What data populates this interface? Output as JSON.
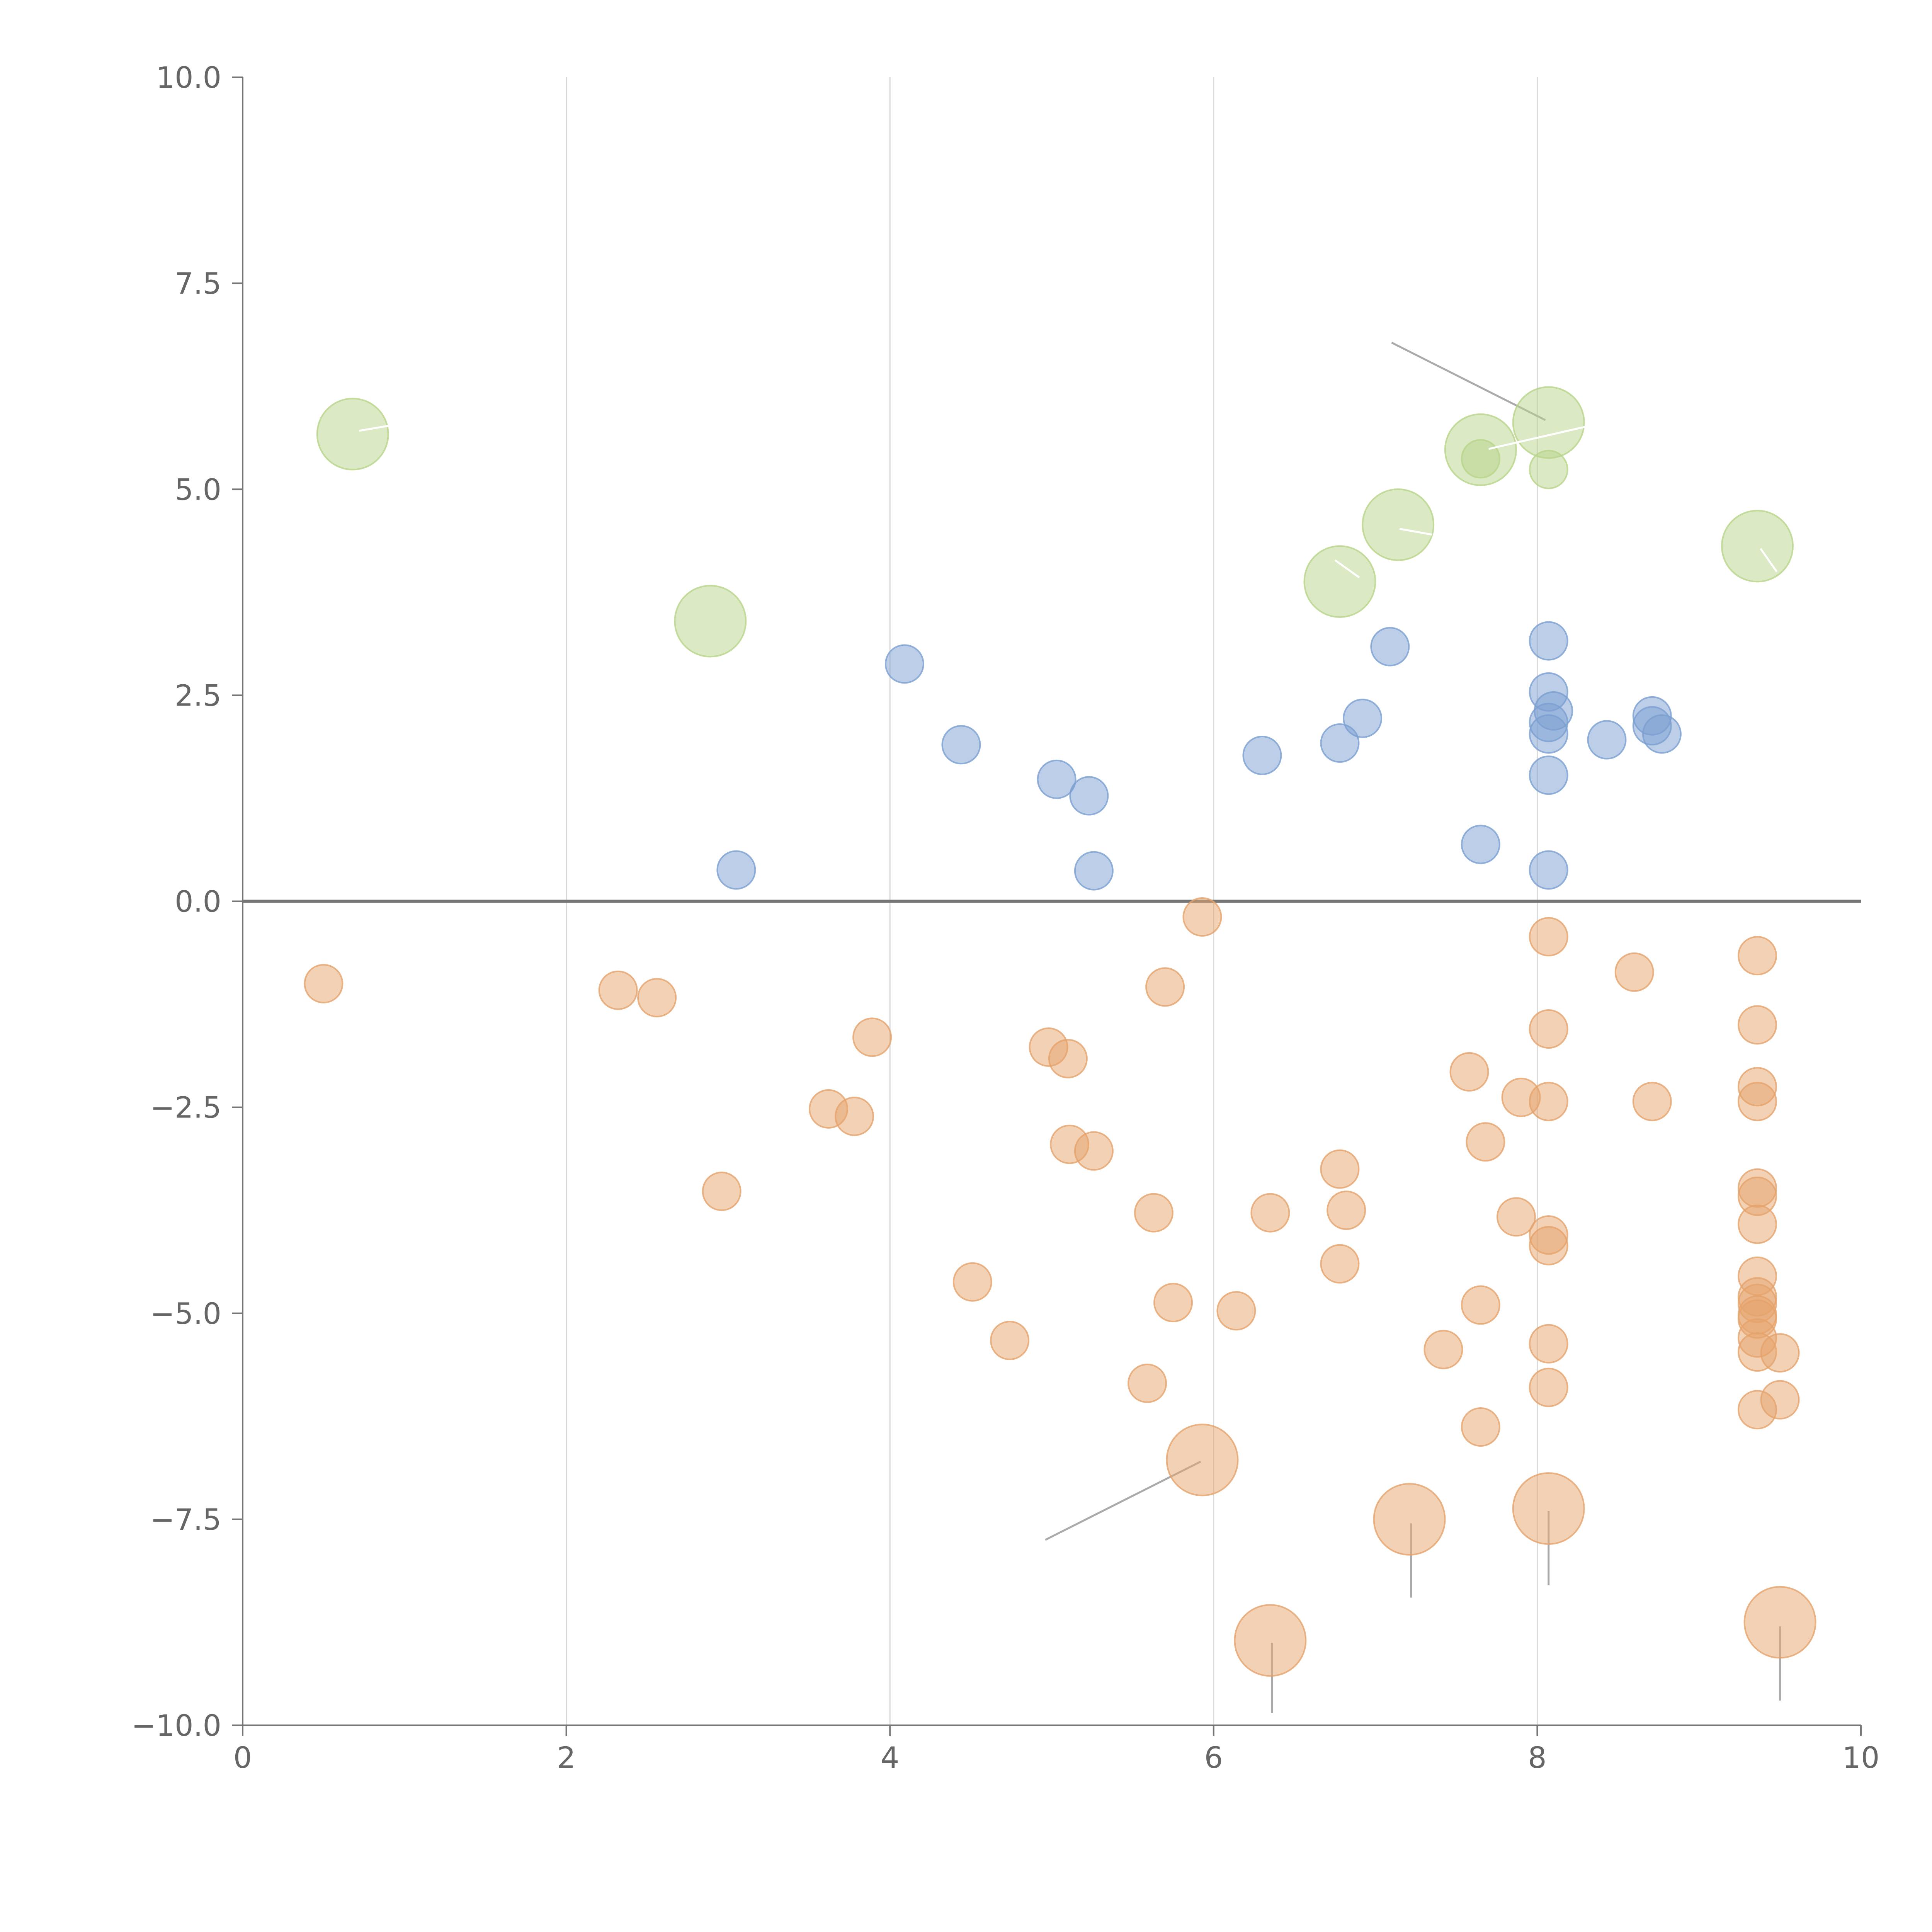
{
  "chart_data": {
    "type": "scatter",
    "title": "",
    "xlabel": "",
    "ylabel": "",
    "xlim": [
      0,
      10
    ],
    "ylim": [
      -10,
      10
    ],
    "x_ticks": [
      "0",
      "2",
      "4",
      "6",
      "8",
      "10"
    ],
    "y_ticks": [
      "10.0",
      "7.5",
      "5.0",
      "2.5",
      "0.0",
      "−2.5",
      "−5.0",
      "−7.5",
      "−10.0"
    ],
    "x_tick_values": [
      0,
      2,
      4,
      6,
      8,
      10
    ],
    "y_tick_values": [
      10,
      7.5,
      5,
      2.5,
      0,
      -2.5,
      -5,
      -7.5,
      -10
    ],
    "vertical_grid": [
      2,
      4,
      6,
      8
    ],
    "zero_line": 0,
    "series": [
      {
        "name": "positive",
        "color": "#7b9fd1",
        "size": "small",
        "points": [
          [
            3.05,
            0.38
          ],
          [
            4.09,
            2.88
          ],
          [
            4.44,
            1.9
          ],
          [
            5.03,
            1.48
          ],
          [
            5.23,
            1.28
          ],
          [
            5.26,
            0.37
          ],
          [
            6.3,
            1.77
          ],
          [
            6.78,
            1.92
          ],
          [
            6.92,
            2.22
          ],
          [
            7.09,
            3.09
          ],
          [
            7.65,
            0.69
          ],
          [
            8.07,
            3.16
          ],
          [
            8.07,
            2.54
          ],
          [
            8.1,
            2.31
          ],
          [
            8.07,
            2.17
          ],
          [
            8.07,
            2.03
          ],
          [
            8.07,
            1.53
          ],
          [
            8.07,
            0.38
          ],
          [
            8.43,
            1.96
          ],
          [
            8.71,
            2.25
          ],
          [
            8.71,
            2.13
          ],
          [
            8.77,
            2.03
          ]
        ]
      },
      {
        "name": "negative",
        "color": "#e5a36b",
        "size": "small",
        "points": [
          [
            0.5,
            -1.0
          ],
          [
            2.32,
            -1.08
          ],
          [
            2.56,
            -1.17
          ],
          [
            2.96,
            -3.52
          ],
          [
            3.62,
            -2.52
          ],
          [
            3.78,
            -2.61
          ],
          [
            3.89,
            -1.65
          ],
          [
            4.51,
            -4.62
          ],
          [
            4.74,
            -5.33
          ],
          [
            4.98,
            -1.77
          ],
          [
            5.1,
            -1.91
          ],
          [
            5.11,
            -2.95
          ],
          [
            5.26,
            -3.03
          ],
          [
            5.59,
            -5.85
          ],
          [
            5.63,
            -3.78
          ],
          [
            5.7,
            -1.04
          ],
          [
            5.75,
            -4.87
          ],
          [
            5.93,
            -0.19
          ],
          [
            6.14,
            -4.97
          ],
          [
            6.35,
            -3.78
          ],
          [
            6.78,
            -3.25
          ],
          [
            6.78,
            -4.4
          ],
          [
            6.82,
            -3.75
          ],
          [
            7.42,
            -5.44
          ],
          [
            7.58,
            -2.07
          ],
          [
            7.65,
            -4.9
          ],
          [
            7.65,
            -6.38
          ],
          [
            7.68,
            -2.92
          ],
          [
            7.87,
            -3.83
          ],
          [
            7.9,
            -2.38
          ],
          [
            8.07,
            -0.43
          ],
          [
            8.07,
            -1.55
          ],
          [
            8.07,
            -2.43
          ],
          [
            8.07,
            -4.05
          ],
          [
            8.07,
            -4.18
          ],
          [
            8.07,
            -5.37
          ],
          [
            8.07,
            -5.9
          ],
          [
            8.6,
            -0.86
          ],
          [
            8.71,
            -2.43
          ],
          [
            9.36,
            -0.66
          ],
          [
            9.36,
            -1.5
          ],
          [
            9.36,
            -2.25
          ],
          [
            9.36,
            -2.43
          ],
          [
            9.36,
            -3.48
          ],
          [
            9.36,
            -3.58
          ],
          [
            9.36,
            -3.92
          ],
          [
            9.36,
            -4.55
          ],
          [
            9.36,
            -4.8
          ],
          [
            9.36,
            -4.88
          ],
          [
            9.36,
            -5.02
          ],
          [
            9.36,
            -5.07
          ],
          [
            9.36,
            -5.3
          ],
          [
            9.36,
            -5.47
          ],
          [
            9.36,
            -6.17
          ],
          [
            9.5,
            -5.48
          ],
          [
            9.5,
            -6.05
          ]
        ]
      },
      {
        "name": "highlighted-positive",
        "color": "#b8d48a",
        "size": "large",
        "points": [
          [
            0.68,
            5.67
          ],
          [
            2.89,
            3.4
          ],
          [
            6.78,
            3.88
          ],
          [
            7.14,
            4.57
          ],
          [
            7.65,
            5.48
          ],
          [
            8.07,
            5.81
          ],
          [
            9.36,
            4.31
          ]
        ]
      },
      {
        "name": "highlighted-positive-small",
        "color": "#b8d48a",
        "size": "small",
        "points": [
          [
            7.65,
            5.37
          ],
          [
            8.07,
            5.24
          ]
        ]
      },
      {
        "name": "highlighted-negative",
        "color": "#e5a36b",
        "size": "large",
        "points": [
          [
            5.93,
            -6.78
          ],
          [
            6.35,
            -8.97
          ],
          [
            7.21,
            -7.5
          ],
          [
            8.07,
            -7.37
          ],
          [
            9.5,
            -8.75
          ]
        ]
      }
    ],
    "connector_lines": [
      [
        [
          7.1,
          6.78
        ],
        [
          8.05,
          5.84
        ]
      ],
      [
        [
          5.92,
          -6.8
        ],
        [
          4.96,
          -7.75
        ]
      ],
      [
        [
          6.36,
          -9.0
        ],
        [
          6.36,
          -9.85
        ]
      ],
      [
        [
          7.22,
          -7.55
        ],
        [
          7.22,
          -8.45
        ]
      ],
      [
        [
          8.07,
          -7.4
        ],
        [
          8.07,
          -8.3
        ]
      ],
      [
        [
          9.5,
          -8.8
        ],
        [
          9.5,
          -9.7
        ]
      ]
    ],
    "label_ticks": [
      [
        [
          0.72,
          5.71
        ],
        [
          0.9,
          5.77
        ]
      ],
      [
        [
          6.75,
          4.14
        ],
        [
          6.9,
          3.93
        ]
      ],
      [
        [
          7.15,
          4.52
        ],
        [
          7.35,
          4.45
        ]
      ],
      [
        [
          7.7,
          5.49
        ],
        [
          8.3,
          5.76
        ]
      ],
      [
        [
          9.38,
          4.28
        ],
        [
          9.48,
          4.0
        ]
      ]
    ]
  }
}
